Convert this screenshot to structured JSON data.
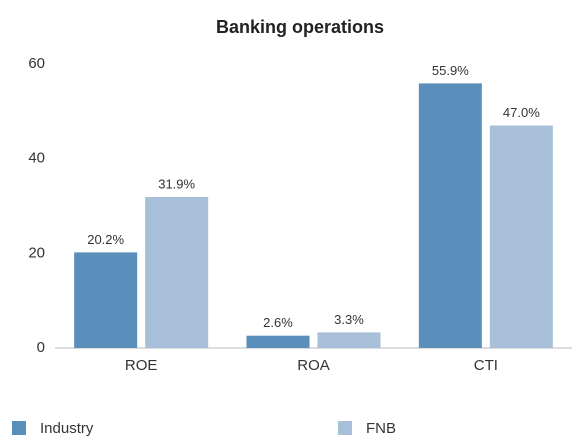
{
  "chart_data": {
    "type": "bar",
    "title": "Banking operations",
    "categories": [
      "ROE",
      "ROA",
      "CTI"
    ],
    "series": [
      {
        "name": "Industry",
        "color": "#5a8fbb",
        "values": [
          20.2,
          2.6,
          55.9
        ],
        "value_labels": [
          "20.2%",
          "2.6%",
          "55.9%"
        ]
      },
      {
        "name": "FNB",
        "color": "#a7bfd9",
        "values": [
          31.9,
          3.3,
          47.0
        ],
        "value_labels": [
          "31.9%",
          "3.3%",
          "47.0%"
        ]
      }
    ],
    "ylim": [
      0,
      60
    ],
    "yticks": [
      0,
      20,
      40,
      60
    ],
    "grid": false,
    "legend": "bottom"
  }
}
